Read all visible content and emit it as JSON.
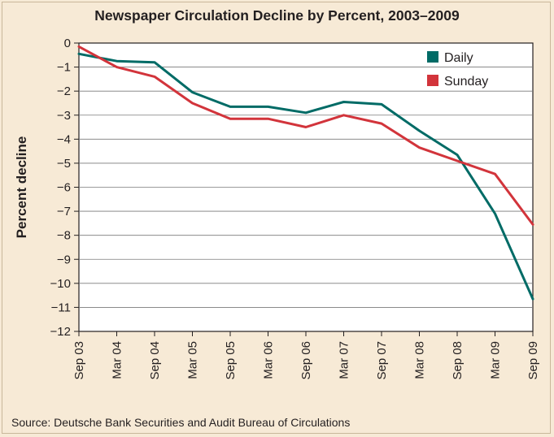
{
  "chart_data": {
    "type": "line",
    "title": "Newspaper Circulation Decline by Percent, 2003–2009",
    "ylabel": "Percent decline",
    "xlabel": "",
    "source": "Source: Deutsche Bank Securities and Audit Bureau of Circulations",
    "categories": [
      "Sep 03",
      "Mar 04",
      "Sep 04",
      "Mar 05",
      "Sep 05",
      "Mar 06",
      "Sep 06",
      "Mar 07",
      "Sep 07",
      "Mar 08",
      "Sep 08",
      "Mar 09",
      "Sep 09"
    ],
    "y_ticks": [
      "0",
      "−1",
      "−2",
      "−3",
      "−4",
      "−5",
      "−6",
      "−7",
      "−8",
      "−9",
      "−10",
      "−11",
      "−12"
    ],
    "ylim": [
      -12,
      0
    ],
    "grid": true,
    "legend_position": "top-right",
    "series": [
      {
        "name": "Daily",
        "color": "#006b66",
        "values": [
          -0.45,
          -0.75,
          -0.8,
          -2.05,
          -2.65,
          -2.65,
          -2.9,
          -2.45,
          -2.55,
          -3.65,
          -4.65,
          -7.1,
          -10.65
        ]
      },
      {
        "name": "Sunday",
        "color": "#d2343b",
        "values": [
          -0.15,
          -1.0,
          -1.4,
          -2.5,
          -3.15,
          -3.15,
          -3.5,
          -3.0,
          -3.35,
          -4.35,
          -4.9,
          -5.45,
          -7.55
        ]
      }
    ]
  }
}
